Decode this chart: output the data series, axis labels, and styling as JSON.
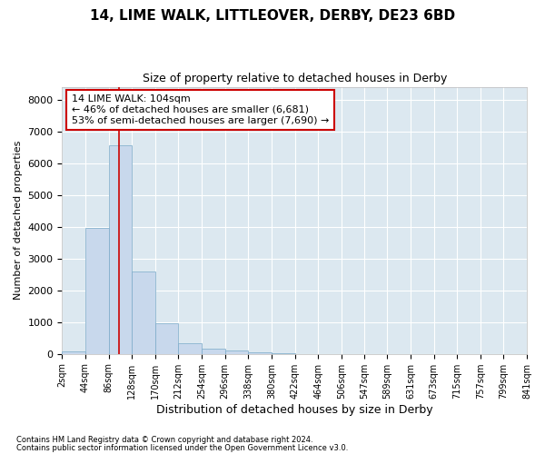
{
  "title_line1": "14, LIME WALK, LITTLEOVER, DERBY, DE23 6BD",
  "title_line2": "Size of property relative to detached houses in Derby",
  "xlabel": "Distribution of detached houses by size in Derby",
  "ylabel": "Number of detached properties",
  "bar_color": "#c8d8ec",
  "bar_edge_color": "#7aaac8",
  "background_color": "#dce8f0",
  "fig_background": "#ffffff",
  "grid_color": "#ffffff",
  "vline_color": "#cc0000",
  "vline_x": 104,
  "annotation_text": "14 LIME WALK: 104sqm\n← 46% of detached houses are smaller (6,681)\n53% of semi-detached houses are larger (7,690) →",
  "annotation_box_color": "#ffffff",
  "annotation_box_edge": "#cc0000",
  "bin_edges": [
    2,
    44,
    86,
    128,
    170,
    212,
    254,
    296,
    338,
    380,
    422,
    464,
    506,
    547,
    589,
    631,
    673,
    715,
    757,
    799,
    841
  ],
  "bin_values": [
    70,
    3950,
    6550,
    2600,
    950,
    325,
    150,
    100,
    50,
    10,
    5,
    2,
    1,
    0,
    0,
    0,
    0,
    0,
    0,
    0
  ],
  "ylim": [
    0,
    8400
  ],
  "yticks": [
    0,
    1000,
    2000,
    3000,
    4000,
    5000,
    6000,
    7000,
    8000
  ],
  "footnote1": "Contains HM Land Registry data © Crown copyright and database right 2024.",
  "footnote2": "Contains public sector information licensed under the Open Government Licence v3.0."
}
